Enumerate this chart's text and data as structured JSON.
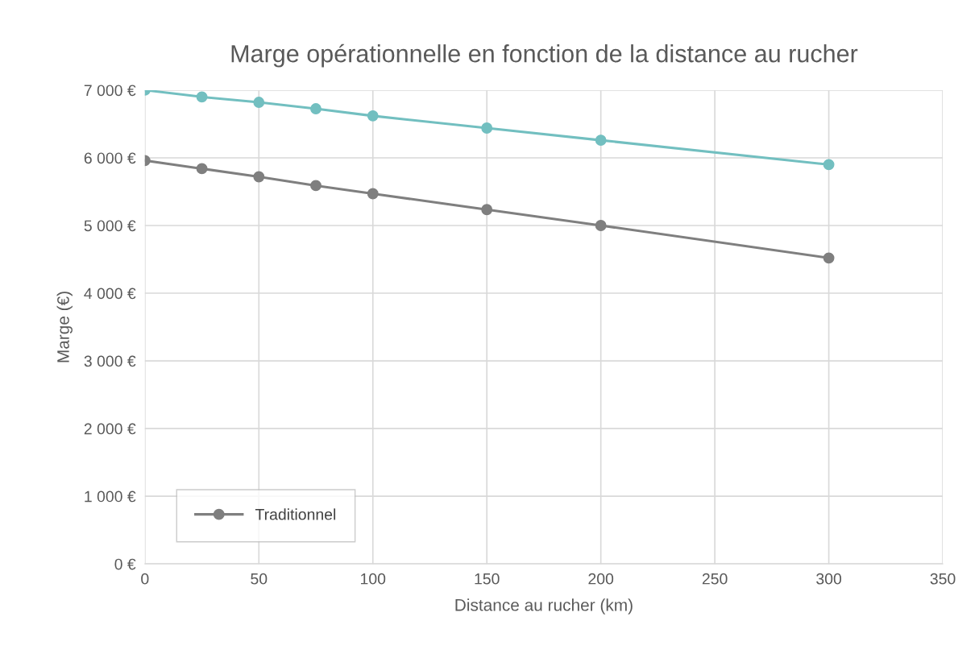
{
  "chart_data": {
    "type": "line",
    "title": "Marge opérationnelle en fonction de la distance au rucher",
    "xlabel": "Distance au rucher (km)",
    "ylabel": "Marge (€)",
    "x": [
      0,
      25,
      50,
      75,
      100,
      150,
      200,
      300
    ],
    "series": [
      {
        "name": "Traditionnel",
        "color": "#7f7f7f",
        "values": [
          5960,
          5840,
          5720,
          5590,
          5470,
          5235,
          5000,
          4520
        ]
      },
      {
        "color": "#72bfc0",
        "values": [
          7000,
          6900,
          6820,
          6725,
          6620,
          6440,
          6260,
          5900
        ]
      }
    ],
    "xlim": [
      0,
      350
    ],
    "xticks": [
      0,
      50,
      100,
      150,
      200,
      250,
      300,
      350
    ],
    "ylim": [
      0,
      7000
    ],
    "yticks": [
      {
        "value": 0,
        "label": "0 €"
      },
      {
        "value": 1000,
        "label": "1 000 €"
      },
      {
        "value": 2000,
        "label": "2 000 €"
      },
      {
        "value": 3000,
        "label": "3 000 €"
      },
      {
        "value": 4000,
        "label": "4 000 €"
      },
      {
        "value": 5000,
        "label": "5 000 €"
      },
      {
        "value": 6000,
        "label": "6 000 €"
      },
      {
        "value": 7000,
        "label": "7 000 €"
      }
    ],
    "grid": true,
    "legend": "bottom left",
    "marker": "circle",
    "line_style": "solid"
  }
}
